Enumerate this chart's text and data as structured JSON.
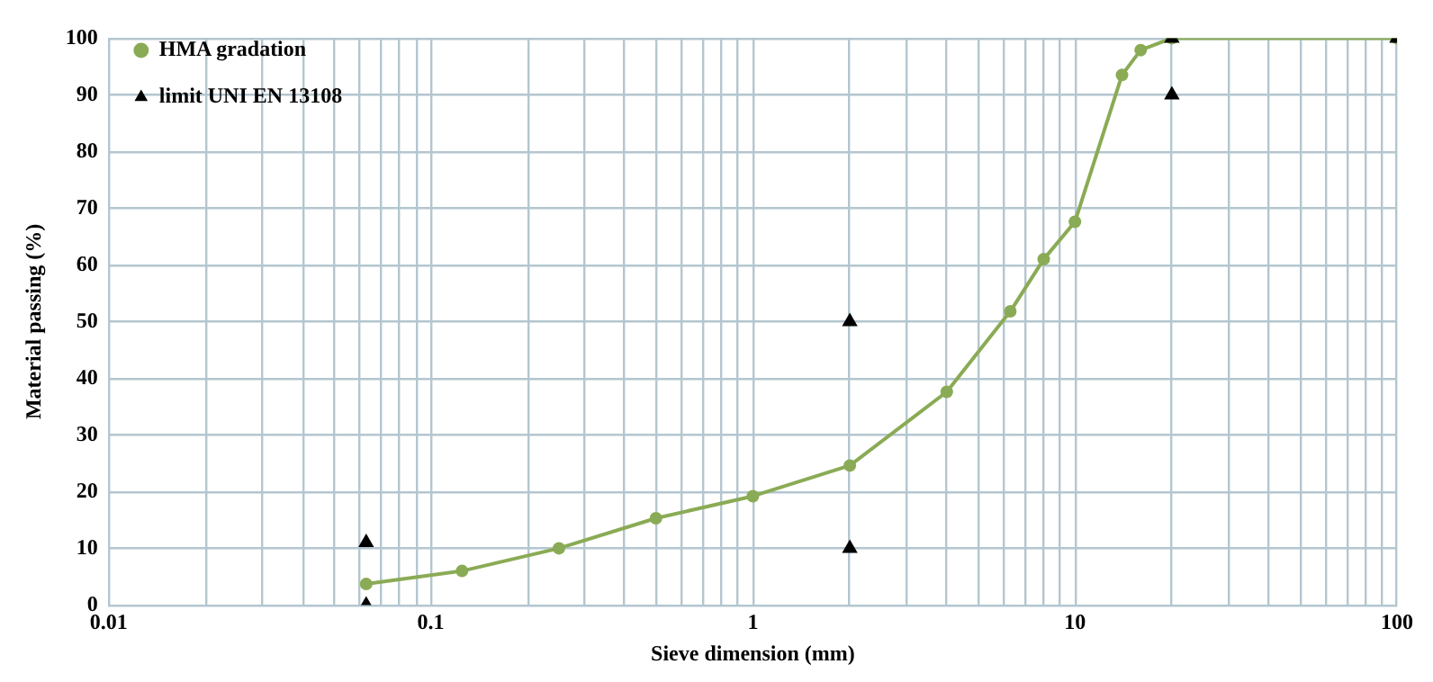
{
  "chart_data": {
    "type": "line",
    "xlabel": "Sieve dimension (mm)",
    "ylabel": "Material passing (%)",
    "log": "x",
    "grid": true,
    "legend": "top left",
    "xlim": [
      0.01,
      100
    ],
    "ylim": [
      0,
      100
    ],
    "xticks": [
      0.01,
      {
        "value": 0.02,
        "label": null
      },
      {
        "value": 0.03,
        "label": null
      },
      {
        "value": 0.04,
        "label": null
      },
      {
        "value": 0.05,
        "label": null
      },
      {
        "value": 0.06,
        "label": null
      },
      {
        "value": 0.07,
        "label": null
      },
      {
        "value": 0.08,
        "label": null
      },
      {
        "value": 0.09,
        "label": null
      },
      0.1,
      {
        "value": 0.2,
        "label": null
      },
      {
        "value": 0.3,
        "label": null
      },
      {
        "value": 0.4,
        "label": null
      },
      {
        "value": 0.5,
        "label": null
      },
      {
        "value": 0.6,
        "label": null
      },
      {
        "value": 0.7,
        "label": null
      },
      {
        "value": 0.8,
        "label": null
      },
      {
        "value": 0.9,
        "label": null
      },
      1,
      {
        "value": 2,
        "label": null
      },
      {
        "value": 3,
        "label": null
      },
      {
        "value": 4,
        "label": null
      },
      {
        "value": 5,
        "label": null
      },
      {
        "value": 6,
        "label": null
      },
      {
        "value": 7,
        "label": null
      },
      {
        "value": 8,
        "label": null
      },
      {
        "value": 9,
        "label": null
      },
      10,
      {
        "value": 20,
        "label": null
      },
      {
        "value": 30,
        "label": null
      },
      {
        "value": 40,
        "label": null
      },
      {
        "value": 50,
        "label": null
      },
      {
        "value": 60,
        "label": null
      },
      {
        "value": 70,
        "label": null
      },
      {
        "value": 80,
        "label": null
      },
      {
        "value": 90,
        "label": null
      },
      100
    ],
    "yticks": [
      0,
      10,
      20,
      30,
      40,
      50,
      60,
      70,
      80,
      90,
      100
    ],
    "series": [
      {
        "name": "HMA gradation",
        "marker": "circle",
        "color": "#8aab55",
        "x": [
          0.063,
          0.125,
          0.25,
          0.5,
          1,
          2,
          4,
          6.3,
          8,
          10,
          14,
          16,
          20,
          100
        ],
        "values": [
          3.7,
          6,
          10,
          15.3,
          19.2,
          24.6,
          37.6,
          51.8,
          61,
          67.6,
          93.5,
          97.9,
          100,
          100
        ]
      },
      {
        "name": "limit UNI EN 13108",
        "type": "scatter",
        "marker": "triangle",
        "color": "#000000",
        "x": [
          0.063,
          0.063,
          2,
          2,
          20,
          20,
          100
        ],
        "values": [
          11,
          0,
          50,
          10,
          100,
          90,
          100
        ]
      }
    ]
  }
}
